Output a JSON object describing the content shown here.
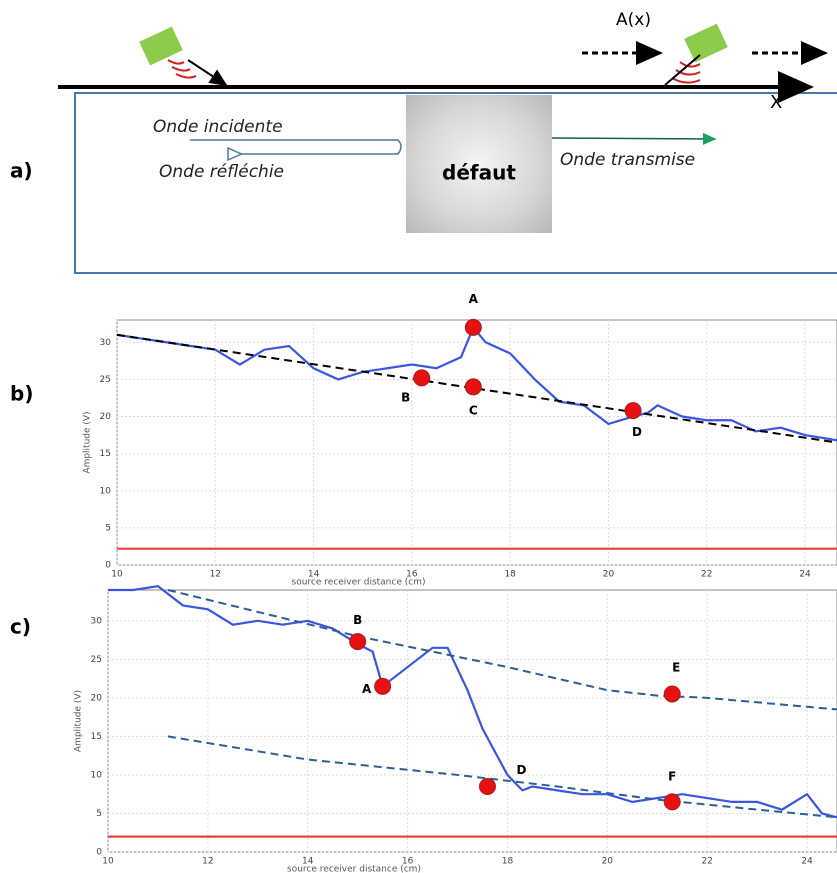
{
  "diagram": {
    "panel": "a)",
    "amplitude_label": "A(x)",
    "axis_label": "X",
    "incident": "Onde incidente",
    "reflected": "Onde réfléchie",
    "defect": "défaut",
    "transmitted": "Onde transmise"
  },
  "chart_data": [
    {
      "type": "line",
      "panel": "b)",
      "xlabel": "source receiver distance (cm)",
      "ylabel": "Amplitude (V)",
      "xlim": [
        10,
        24.65
      ],
      "ylim": [
        0,
        33
      ],
      "xticks": [
        10,
        12,
        14,
        16,
        18,
        20,
        22,
        24
      ],
      "yticks": [
        0,
        5,
        10,
        15,
        20,
        25,
        30
      ],
      "grid": true,
      "series": [
        {
          "color": "#3a56e0",
          "dash": false,
          "x": [
            10,
            10.5,
            11,
            11.5,
            12,
            12.5,
            13,
            13.5,
            14,
            14.5,
            15,
            15.5,
            16,
            16.5,
            17,
            17.25,
            17.5,
            18,
            18.5,
            19,
            19.5,
            20,
            20.5,
            20.8,
            21,
            21.5,
            22,
            22.5,
            23,
            23.5,
            24,
            24.65
          ],
          "values": [
            31,
            30.5,
            30,
            29.5,
            29,
            27,
            29,
            29.5,
            26.5,
            25,
            26,
            26.5,
            27,
            26.5,
            28,
            32,
            30,
            28.5,
            25,
            22,
            21.5,
            19,
            20,
            20.5,
            21.5,
            20,
            19.5,
            19.5,
            18,
            18.5,
            17.5,
            16.8
          ]
        },
        {
          "color": "#000000",
          "dash": true,
          "x": [
            10,
            24.65
          ],
          "values": [
            31,
            16.5
          ]
        },
        {
          "color": "#e84040",
          "dash": false,
          "x": [
            10,
            24.65
          ],
          "values": [
            2.2,
            2.2
          ]
        }
      ],
      "points": [
        {
          "label": "A",
          "x": 17.25,
          "y": 32
        },
        {
          "label": "B",
          "x": 16.2,
          "y": 25.2
        },
        {
          "label": "C",
          "x": 17.25,
          "y": 24
        },
        {
          "label": "D",
          "x": 20.5,
          "y": 20.8
        }
      ]
    },
    {
      "type": "line",
      "panel": "c)",
      "xlabel": "source receiver distance (cm)",
      "ylabel": "Amplitude (V)",
      "xlim": [
        10,
        24.6
      ],
      "ylim": [
        0,
        34
      ],
      "xticks": [
        10,
        12,
        14,
        16,
        18,
        20,
        22,
        24
      ],
      "yticks": [
        0,
        5,
        10,
        15,
        20,
        25,
        30
      ],
      "grid": true,
      "series": [
        {
          "color": "#3a56e0",
          "dash": false,
          "x": [
            10,
            10.5,
            11,
            11.5,
            12,
            12.5,
            13,
            13.5,
            14,
            14.5,
            15,
            15.3,
            15.5,
            16,
            16.5,
            16.8,
            17.2,
            17.5,
            18,
            18.3,
            18.5,
            19,
            19.5,
            20,
            20.5,
            21,
            21.5,
            22,
            22.5,
            23,
            23.5,
            24,
            24.3,
            24.6
          ],
          "values": [
            34,
            34,
            34.5,
            32,
            31.5,
            29.5,
            30,
            29.5,
            30,
            29,
            27,
            26,
            21.5,
            24,
            26.5,
            26.5,
            21,
            16,
            10,
            8,
            8.5,
            8,
            7.5,
            7.5,
            6.5,
            7,
            7.5,
            7,
            6.5,
            6.5,
            5.5,
            7.5,
            5,
            4.5
          ]
        },
        {
          "color": "#2e5f94",
          "dash": true,
          "x": [
            11.2,
            15,
            18,
            20,
            21,
            22,
            24.6
          ],
          "values": [
            34,
            28,
            24,
            21,
            20.3,
            20,
            18.5
          ]
        },
        {
          "color": "#2e5f94",
          "dash": true,
          "x": [
            11.2,
            14,
            17,
            19,
            21,
            23,
            24.6
          ],
          "values": [
            15,
            12,
            10,
            8.5,
            6.8,
            5.5,
            4.5
          ]
        },
        {
          "color": "#e84040",
          "dash": false,
          "x": [
            10,
            24.6
          ],
          "values": [
            2,
            2
          ]
        }
      ],
      "points": [
        {
          "label": "B",
          "x": 15,
          "y": 27.3
        },
        {
          "label": "A",
          "x": 15.5,
          "y": 21.5
        },
        {
          "label": "E",
          "x": 21.3,
          "y": 20.5
        },
        {
          "label": "D",
          "x": 17.6,
          "y": 8.5
        },
        {
          "label": "F",
          "x": 21.3,
          "y": 6.5
        }
      ]
    }
  ]
}
